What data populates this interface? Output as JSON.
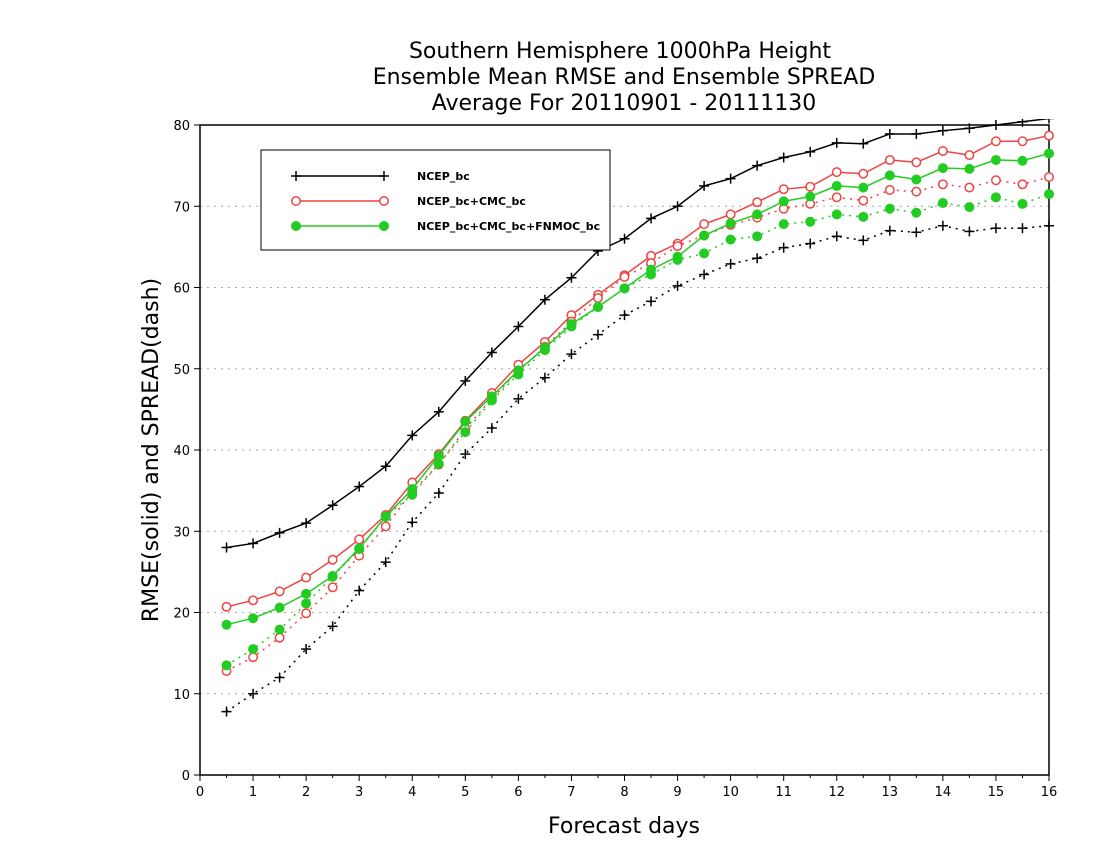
{
  "chart_data": {
    "type": "line",
    "title_lines": [
      "Southern Hemisphere 1000hPa Height",
      "Ensemble Mean RMSE and Ensemble SPREAD",
      "Average For 20110901 - 20111130"
    ],
    "xlabel": "Forecast days",
    "ylabel": "RMSE(solid) and SPREAD(dash)",
    "xlim": [
      0,
      16
    ],
    "ylim": [
      0,
      80
    ],
    "xticks": [
      0,
      1,
      2,
      3,
      4,
      5,
      6,
      7,
      8,
      9,
      10,
      11,
      12,
      13,
      14,
      15,
      16
    ],
    "yticks": [
      0,
      10,
      20,
      30,
      40,
      50,
      60,
      70,
      80
    ],
    "grid": "horizontal dotted",
    "legend_position": "top-left",
    "x": [
      0.5,
      1,
      1.5,
      2,
      2.5,
      3,
      3.5,
      4,
      4.5,
      5,
      5.5,
      6,
      6.5,
      7,
      7.5,
      8,
      8.5,
      9,
      9.5,
      10,
      10.5,
      11,
      11.5,
      12,
      12.5,
      13,
      13.5,
      14,
      14.5,
      15,
      15.5,
      16
    ],
    "series": [
      {
        "name": "NCEP_bc",
        "color": "#000000",
        "marker": "plus",
        "rmse": [
          28.0,
          28.5,
          29.8,
          31.0,
          33.2,
          35.5,
          38.0,
          41.8,
          44.7,
          48.5,
          52.0,
          55.2,
          58.5,
          61.2,
          64.5,
          66.0,
          68.5,
          70.0,
          72.5,
          73.4,
          75.0,
          76.0,
          76.7,
          77.8,
          77.7,
          78.9,
          78.9,
          79.3,
          79.6,
          80.0,
          80.4,
          80.8
        ],
        "spread": [
          7.8,
          10.0,
          12.0,
          15.5,
          18.3,
          22.7,
          26.2,
          31.1,
          34.7,
          39.5,
          42.7,
          46.3,
          48.9,
          51.8,
          54.2,
          56.6,
          58.3,
          60.2,
          61.6,
          62.9,
          63.6,
          64.9,
          65.4,
          66.3,
          65.8,
          67.0,
          66.8,
          67.6,
          66.9,
          67.3,
          67.3,
          67.6
        ]
      },
      {
        "name": "NCEP_bc+CMC_bc",
        "color": "#ee4444",
        "marker": "open-circle",
        "rmse": [
          20.7,
          21.5,
          22.6,
          24.3,
          26.5,
          29.0,
          32.0,
          36.0,
          39.5,
          43.6,
          47.0,
          50.5,
          53.3,
          56.6,
          59.1,
          61.5,
          63.9,
          65.4,
          67.8,
          69.0,
          70.5,
          72.1,
          72.4,
          74.2,
          74.0,
          75.7,
          75.4,
          76.8,
          76.3,
          78.0,
          78.0,
          78.7
        ],
        "spread": [
          12.8,
          14.5,
          16.9,
          19.9,
          23.1,
          27.0,
          30.6,
          34.9,
          38.2,
          42.6,
          46.3,
          49.7,
          52.7,
          55.8,
          58.7,
          61.3,
          63.0,
          65.1,
          66.4,
          67.7,
          68.6,
          69.7,
          70.3,
          71.1,
          70.7,
          72.0,
          71.8,
          72.7,
          72.3,
          73.2,
          72.7,
          73.6
        ]
      },
      {
        "name": "NCEP_bc+CMC_bc+FNMOC_bc",
        "color": "#22cc22",
        "marker": "filled-circle",
        "rmse": [
          18.5,
          19.3,
          20.6,
          22.3,
          24.5,
          27.9,
          31.8,
          35.2,
          39.3,
          43.5,
          46.6,
          49.8,
          52.6,
          55.5,
          57.6,
          59.9,
          62.2,
          63.8,
          66.4,
          67.9,
          69.0,
          70.6,
          71.2,
          72.5,
          72.3,
          73.8,
          73.3,
          74.7,
          74.6,
          75.7,
          75.6,
          76.5
        ],
        "spread": [
          13.5,
          15.5,
          17.9,
          21.1,
          24.4,
          27.8,
          31.8,
          34.5,
          38.3,
          42.2,
          46.1,
          49.3,
          52.3,
          55.2,
          57.6,
          59.9,
          61.6,
          63.4,
          64.2,
          65.9,
          66.3,
          67.8,
          68.1,
          69.0,
          68.7,
          69.7,
          69.2,
          70.4,
          69.9,
          71.1,
          70.3,
          71.5
        ]
      }
    ]
  }
}
